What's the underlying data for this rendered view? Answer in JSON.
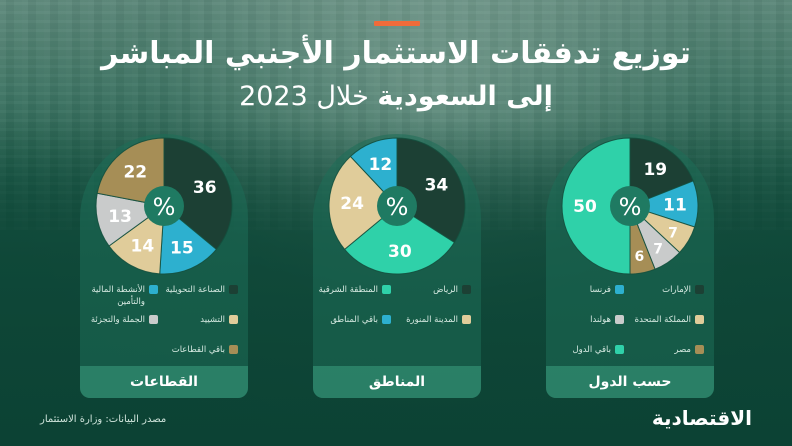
{
  "title": "توزيع تدفقات الاستثمار الأجنبي المباشر",
  "subtitle_main": "إلى السعودية",
  "subtitle_year": "خلال 2023",
  "source": "مصدر البيانات: وزارة الاستثمار",
  "logo": "الاقتصادية",
  "center_symbol": "%",
  "colors": {
    "dark": "#1c4034",
    "teal": "#2db0cf",
    "mint": "#2fd1a9",
    "beige": "#e0cc9a",
    "olive": "#a68e56",
    "gray": "#c9cbcb",
    "green_light": "#38b090"
  },
  "chart_data": [
    {
      "type": "pie",
      "title": "القطاعات",
      "slices": [
        {
          "label": "الصناعة التحويلية",
          "value": 36,
          "color": "#1c4034"
        },
        {
          "label": "الأنشطة المالية والتأمين",
          "value": 15,
          "color": "#2db0cf"
        },
        {
          "label": "التشييد",
          "value": 14,
          "color": "#e0cc9a"
        },
        {
          "label": "الجملة والتجزئة",
          "value": 13,
          "color": "#c9cbcb"
        },
        {
          "label": "باقي القطاعات",
          "value": 22,
          "color": "#a68e56"
        }
      ]
    },
    {
      "type": "pie",
      "title": "المناطق",
      "slices": [
        {
          "label": "الرياض",
          "value": 34,
          "color": "#1c4034"
        },
        {
          "label": "المنطقة الشرقية",
          "value": 30,
          "color": "#2fd1a9"
        },
        {
          "label": "المدينة المنورة",
          "value": 24,
          "color": "#e0cc9a"
        },
        {
          "label": "باقي المناطق",
          "value": 12,
          "color": "#2db0cf"
        }
      ]
    },
    {
      "type": "pie",
      "title": "حسب الدول",
      "slices": [
        {
          "label": "الإمارات",
          "value": 19,
          "color": "#1c4034"
        },
        {
          "label": "فرنسا",
          "value": 11,
          "color": "#2db0cf"
        },
        {
          "label": "المملكة المتحدة",
          "value": 7,
          "color": "#e0cc9a"
        },
        {
          "label": "هولندا",
          "value": 7,
          "color": "#c9cbcb"
        },
        {
          "label": "مصر",
          "value": 6,
          "color": "#a68e56"
        },
        {
          "label": "باقي الدول",
          "value": 50,
          "color": "#2fd1a9"
        }
      ]
    }
  ]
}
